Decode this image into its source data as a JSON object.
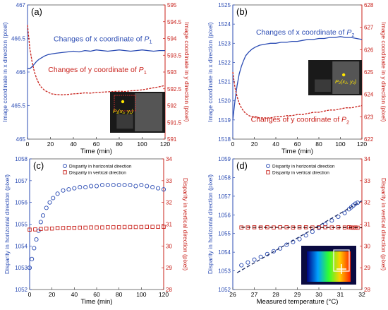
{
  "chart_data": [
    {
      "type": "line",
      "panel_label": "(a)",
      "xlabel": "Time (min)",
      "ylabel": "Image coordinate in x direction (pixel)",
      "y2label": "Image coordinate in y direction (pixel)",
      "xlim": [
        0,
        120
      ],
      "ylim": [
        465,
        467
      ],
      "y2lim": [
        591,
        595
      ],
      "xticks": [
        "0",
        "20",
        "40",
        "60",
        "80",
        "100",
        "120"
      ],
      "yticks": [
        "465",
        "465.5",
        "466",
        "466.5",
        "467"
      ],
      "y2ticks": [
        "591",
        "591.5",
        "592",
        "592.5",
        "593",
        "593.5",
        "594",
        "594.5",
        "595"
      ],
      "annotations": [
        {
          "text": "Changes of x coordinate of ",
          "sym": "P",
          "sub": "1"
        },
        {
          "text": "Changes of y coordinate of ",
          "sym": "P",
          "sub": "1"
        }
      ],
      "inset": {
        "label": "P₁(x₁, y₁)"
      },
      "series": [
        {
          "axis": "left",
          "color": "#2a4bb3",
          "x": [
            0,
            2,
            4,
            6,
            8,
            10,
            12,
            15,
            18,
            21,
            25,
            30,
            35,
            40,
            45,
            50,
            55,
            60,
            65,
            70,
            75,
            80,
            85,
            90,
            95,
            100,
            105,
            110,
            115,
            120
          ],
          "values": [
            466.05,
            466.05,
            466.08,
            466.12,
            466.16,
            466.19,
            466.21,
            466.24,
            466.26,
            466.27,
            466.28,
            466.29,
            466.3,
            466.31,
            466.3,
            466.32,
            466.31,
            466.33,
            466.32,
            466.31,
            466.32,
            466.33,
            466.32,
            466.31,
            466.32,
            466.33,
            466.32,
            466.31,
            466.32,
            466.32
          ]
        },
        {
          "axis": "right",
          "color": "#c8201a",
          "x": [
            0,
            2,
            4,
            6,
            8,
            10,
            12,
            15,
            18,
            21,
            25,
            30,
            35,
            40,
            45,
            50,
            55,
            60,
            65,
            70,
            75,
            80,
            85,
            90,
            95,
            100,
            105,
            110,
            115,
            120
          ],
          "values": [
            594.4,
            593.7,
            593.3,
            593.0,
            592.8,
            592.65,
            592.55,
            592.45,
            592.4,
            592.35,
            592.33,
            592.32,
            592.33,
            592.35,
            592.36,
            592.38,
            592.37,
            592.39,
            592.4,
            592.41,
            592.42,
            592.43,
            592.42,
            592.44,
            592.45,
            592.47,
            592.5,
            592.53,
            592.56,
            592.6
          ]
        }
      ]
    },
    {
      "type": "line",
      "panel_label": "(b)",
      "xlabel": "Time (min)",
      "ylabel": "Image coordinate in x direction (pixel)",
      "y2label": "Image coordinate in y direction (pixel)",
      "xlim": [
        0,
        120
      ],
      "ylim": [
        1518,
        1525
      ],
      "y2lim": [
        622,
        628
      ],
      "xticks": [
        "0",
        "20",
        "40",
        "60",
        "80",
        "100",
        "120"
      ],
      "yticks": [
        "1518",
        "1519",
        "1520",
        "1521",
        "1522",
        "1523",
        "1524",
        "1525"
      ],
      "y2ticks": [
        "622",
        "623",
        "624",
        "625",
        "626",
        "627",
        "628"
      ],
      "annotations": [
        {
          "text": "Changes of x coordinate of ",
          "sym": "P",
          "sub": "2"
        },
        {
          "text": "Changes of y coordinate of ",
          "sym": "P",
          "sub": "2"
        }
      ],
      "inset": {
        "label": "P₂(x₂, y₂)"
      },
      "series": [
        {
          "axis": "left",
          "color": "#2a4bb3",
          "x": [
            0,
            2,
            4,
            6,
            8,
            10,
            12,
            15,
            18,
            21,
            25,
            30,
            35,
            40,
            45,
            50,
            55,
            60,
            65,
            70,
            75,
            80,
            85,
            90,
            95,
            100,
            105,
            110,
            115,
            120
          ],
          "values": [
            1519.0,
            1520.0,
            1520.8,
            1521.4,
            1521.8,
            1522.1,
            1522.35,
            1522.55,
            1522.7,
            1522.8,
            1522.9,
            1522.95,
            1523.0,
            1523.0,
            1523.05,
            1523.05,
            1523.1,
            1523.1,
            1523.15,
            1523.2,
            1523.2,
            1523.25,
            1523.25,
            1523.3,
            1523.3,
            1523.35,
            1523.3,
            1523.3,
            1523.25,
            1523.2
          ]
        },
        {
          "axis": "right",
          "color": "#c8201a",
          "x": [
            0,
            2,
            4,
            6,
            8,
            10,
            12,
            15,
            18,
            21,
            25,
            30,
            35,
            40,
            45,
            50,
            55,
            60,
            65,
            70,
            75,
            80,
            85,
            90,
            95,
            100,
            105,
            110,
            115,
            120
          ],
          "values": [
            625.0,
            624.3,
            623.9,
            623.6,
            623.4,
            623.25,
            623.15,
            623.05,
            623.0,
            623.0,
            622.95,
            622.95,
            622.95,
            623.0,
            623.0,
            623.05,
            623.05,
            623.1,
            623.1,
            623.15,
            623.2,
            623.2,
            623.25,
            623.3,
            623.3,
            623.35,
            623.4,
            623.4,
            623.45,
            623.5
          ]
        }
      ]
    },
    {
      "type": "scatter",
      "panel_label": "(c)",
      "xlabel": "Time (min)",
      "ylabel": "Disparity in horizontal direction (pixel)",
      "y2label": "Disparity in vertical direction (pixel)",
      "xlim": [
        0,
        120
      ],
      "ylim": [
        1052,
        1058
      ],
      "y2lim": [
        28,
        34
      ],
      "xticks": [
        "0",
        "20",
        "40",
        "60",
        "80",
        "100",
        "120"
      ],
      "yticks": [
        "1052",
        "1053",
        "1054",
        "1055",
        "1056",
        "1057",
        "1058"
      ],
      "y2ticks": [
        "28",
        "29",
        "30",
        "31",
        "32",
        "33",
        "34"
      ],
      "legend": [
        "Disparity in horizontal direction",
        "Disparity in vertical direction"
      ],
      "legend_position": "top-left",
      "series": [
        {
          "name": "Disparity in horizontal direction",
          "axis": "left",
          "marker": "circle",
          "color": "#2a4bb3",
          "x": [
            0,
            2,
            4,
            6,
            8,
            10,
            12,
            15,
            18,
            21,
            25,
            30,
            35,
            40,
            45,
            50,
            55,
            60,
            65,
            70,
            75,
            80,
            85,
            90,
            95,
            100,
            105,
            110,
            115,
            120
          ],
          "values": [
            1053.0,
            1053.4,
            1053.9,
            1054.3,
            1054.7,
            1055.1,
            1055.4,
            1055.75,
            1056.0,
            1056.2,
            1056.4,
            1056.55,
            1056.6,
            1056.65,
            1056.7,
            1056.7,
            1056.75,
            1056.75,
            1056.8,
            1056.8,
            1056.8,
            1056.8,
            1056.8,
            1056.8,
            1056.75,
            1056.8,
            1056.75,
            1056.7,
            1056.65,
            1056.6
          ]
        },
        {
          "name": "Disparity in vertical direction",
          "axis": "right",
          "marker": "square",
          "color": "#c8201a",
          "x": [
            0,
            5,
            10,
            15,
            20,
            25,
            30,
            35,
            40,
            45,
            50,
            55,
            60,
            65,
            70,
            75,
            80,
            85,
            90,
            95,
            100,
            105,
            110,
            115,
            120
          ],
          "values": [
            30.75,
            30.76,
            30.78,
            30.8,
            30.8,
            30.82,
            30.82,
            30.83,
            30.83,
            30.84,
            30.84,
            30.85,
            30.85,
            30.85,
            30.86,
            30.86,
            30.86,
            30.87,
            30.87,
            30.87,
            30.87,
            30.88,
            30.88,
            30.88,
            30.88
          ]
        }
      ]
    },
    {
      "type": "scatter",
      "panel_label": "(d)",
      "xlabel": "Measured temperature (°C)",
      "ylabel": "Disparity in horizontal direction (pixel)",
      "y2label": "Disparity in vertical direction (pixel)",
      "xlim": [
        26,
        32
      ],
      "ylim": [
        1052,
        1059
      ],
      "y2lim": [
        28,
        34
      ],
      "xticks": [
        "26",
        "27",
        "28",
        "29",
        "30",
        "31",
        "32"
      ],
      "yticks": [
        "1052",
        "1053",
        "1054",
        "1055",
        "1056",
        "1057",
        "1058",
        "1059"
      ],
      "y2ticks": [
        "28",
        "29",
        "30",
        "31",
        "32",
        "33",
        "34"
      ],
      "legend": [
        "Disparity in horizontal direction",
        "Disparity in vertical direction"
      ],
      "legend_position": "top-left",
      "series": [
        {
          "name": "Disparity in horizontal direction",
          "axis": "left",
          "marker": "circle",
          "color": "#2a4bb3",
          "x": [
            26.4,
            26.7,
            27.0,
            27.3,
            27.6,
            27.9,
            28.2,
            28.5,
            28.8,
            29.1,
            29.4,
            29.7,
            30.0,
            30.3,
            30.6,
            30.9,
            31.2,
            31.4,
            31.5,
            31.6,
            31.7,
            31.8
          ],
          "values": [
            1053.3,
            1053.45,
            1053.6,
            1053.75,
            1053.9,
            1054.05,
            1054.2,
            1054.4,
            1054.55,
            1054.7,
            1054.9,
            1055.1,
            1055.3,
            1055.5,
            1055.7,
            1055.9,
            1056.1,
            1056.3,
            1056.4,
            1056.5,
            1056.6,
            1056.65
          ]
        },
        {
          "name": "Disparity in vertical direction",
          "axis": "right",
          "marker": "square",
          "color": "#c8201a",
          "x": [
            26.4,
            26.7,
            27.0,
            27.3,
            27.6,
            27.9,
            28.2,
            28.5,
            28.8,
            29.1,
            29.4,
            29.7,
            30.0,
            30.3,
            30.6,
            30.9,
            31.2,
            31.4,
            31.5,
            31.6,
            31.7,
            31.8
          ],
          "values": [
            30.85,
            30.85,
            30.86,
            30.85,
            30.86,
            30.85,
            30.86,
            30.86,
            30.85,
            30.86,
            30.86,
            30.85,
            30.86,
            30.86,
            30.85,
            30.86,
            30.85,
            30.86,
            30.85,
            30.84,
            30.85,
            30.84
          ]
        }
      ],
      "trendlines": [
        {
          "axis": "left",
          "color": "#1a2a66",
          "style": "dashed",
          "x": [
            26.2,
            32
          ],
          "values": [
            1052.9,
            1056.75
          ]
        },
        {
          "axis": "right",
          "color": "#3a0000",
          "style": "dashed",
          "x": [
            26.4,
            32
          ],
          "values": [
            30.86,
            30.84
          ]
        }
      ]
    }
  ]
}
